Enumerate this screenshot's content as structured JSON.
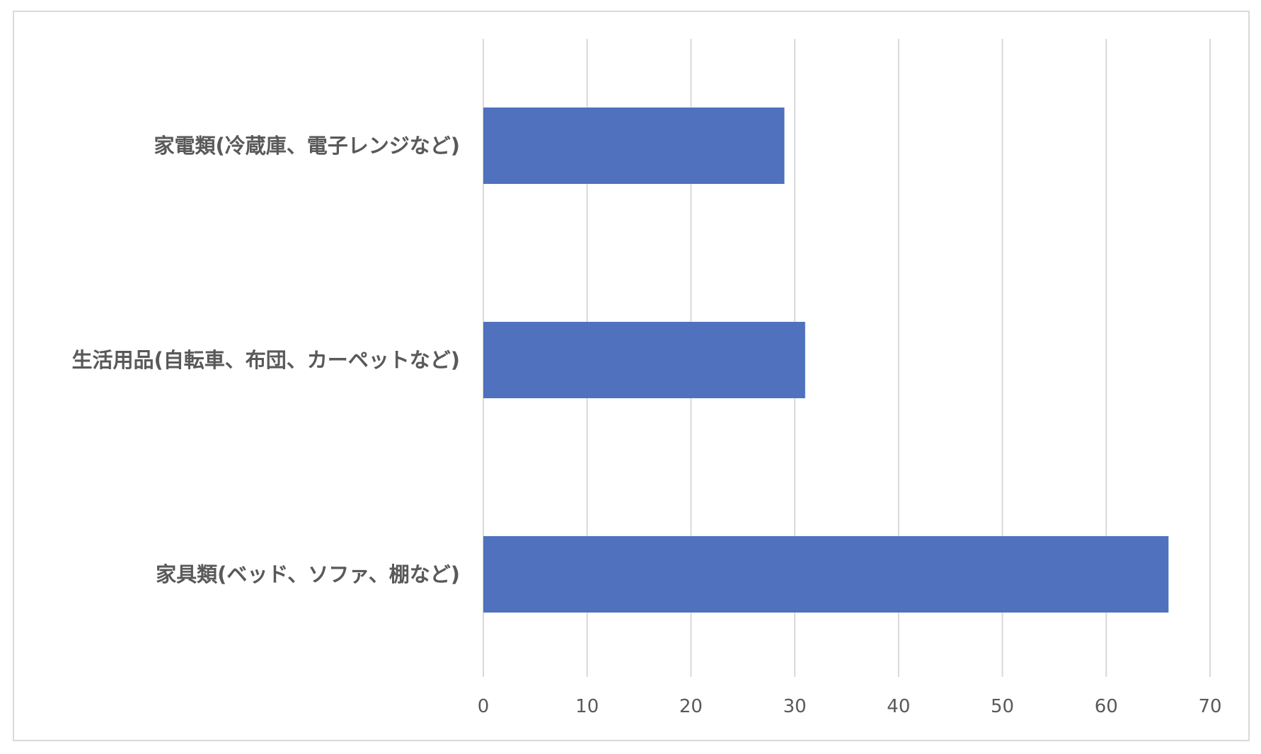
{
  "chart_data": {
    "type": "bar",
    "orientation": "horizontal",
    "categories": [
      "家電類(冷蔵庫、電子レンジなど)",
      "生活用品(自転車、布団、カーペットなど)",
      "家具類(ベッド、ソファ、棚など)"
    ],
    "values": [
      29,
      31,
      66
    ],
    "title": "",
    "xlabel": "",
    "ylabel": "",
    "xlim": [
      0,
      70
    ],
    "ticks": [
      0,
      10,
      20,
      30,
      40,
      50,
      60,
      70
    ],
    "tick_labels": [
      "0",
      "10",
      "20",
      "30",
      "40",
      "50",
      "60",
      "70"
    ],
    "grid": "vertical",
    "legend": "none",
    "bar_color": "#4F71BE",
    "grid_color": "#D9D9D9",
    "text_color": "#595959"
  }
}
